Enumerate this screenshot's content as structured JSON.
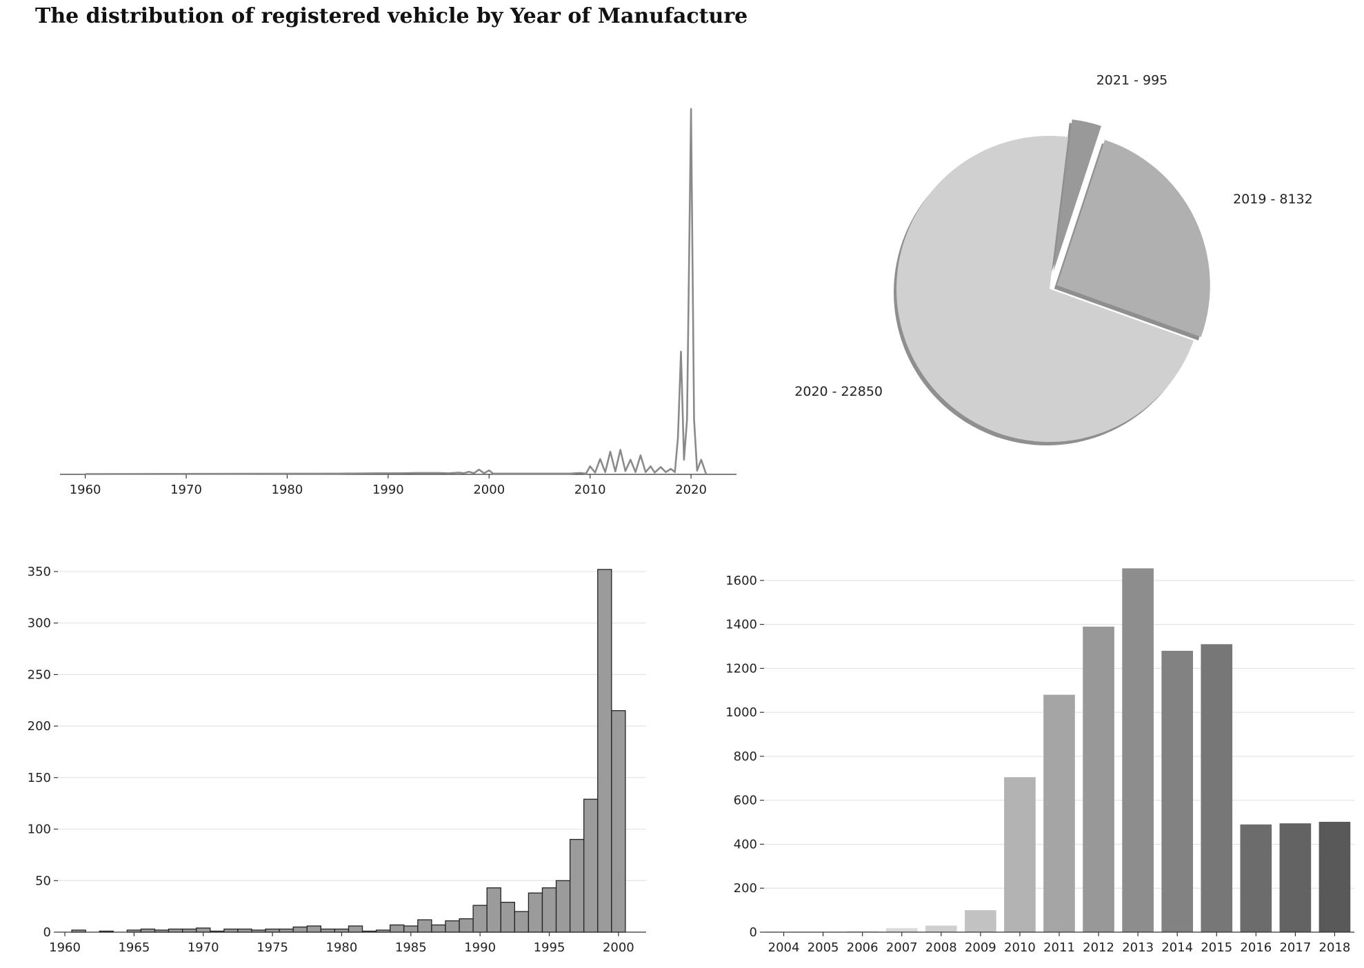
{
  "title": "The distribution of registered vehicle by Year of Manufacture",
  "chart_data": [
    {
      "type": "line",
      "name": "kde",
      "title": "",
      "xlabel": "",
      "ylabel": "",
      "xlim": [
        1957.5,
        2024.5
      ],
      "ylim": [
        0,
        1
      ],
      "x_ticks": [
        "1960",
        "1970",
        "1980",
        "1990",
        "2000",
        "2010",
        "2020"
      ],
      "grid": false,
      "x": [
        1960,
        1985,
        1989,
        1991,
        1993,
        1995,
        1996,
        1997,
        1997.5,
        1998,
        1998.5,
        1999,
        1999.5,
        2000,
        2000.4,
        2001,
        2008,
        2009,
        2009.6,
        2010,
        2010.5,
        2011,
        2011.5,
        2012,
        2012.5,
        2013,
        2013.5,
        2014,
        2014.5,
        2015,
        2015.5,
        2016,
        2016.4,
        2017,
        2017.5,
        2018,
        2018.4,
        2018.7,
        2019,
        2019.3,
        2019.6,
        2020,
        2020.3,
        2020.6,
        2021,
        2021.5
      ],
      "values": [
        0.001,
        0.002,
        0.003,
        0.003,
        0.004,
        0.004,
        0.003,
        0.005,
        0.003,
        0.007,
        0.003,
        0.013,
        0.003,
        0.011,
        0.002,
        0.002,
        0.002,
        0.004,
        0.002,
        0.022,
        0.005,
        0.042,
        0.006,
        0.062,
        0.008,
        0.067,
        0.009,
        0.04,
        0.006,
        0.052,
        0.006,
        0.022,
        0.005,
        0.02,
        0.006,
        0.015,
        0.006,
        0.1,
        0.336,
        0.04,
        0.15,
        1.0,
        0.15,
        0.01,
        0.04,
        0.0
      ]
    },
    {
      "type": "pie",
      "title": "",
      "labels": [
        "2020 - 22850",
        "2019 - 8132",
        "2021 - 995"
      ],
      "values": [
        22850,
        8132,
        995
      ],
      "colors": [
        "#d0d0d0",
        "#b0b0b0",
        "#999999"
      ],
      "shadow": true
    },
    {
      "type": "bar",
      "title": "",
      "xlabel": "",
      "ylabel": "",
      "x_ticks": [
        "1960",
        "1965",
        "1970",
        "1975",
        "1980",
        "1985",
        "1990",
        "1995",
        "2000"
      ],
      "y_ticks": [
        "0",
        "50",
        "100",
        "150",
        "200",
        "250",
        "300",
        "350"
      ],
      "xlim": [
        1959.5,
        2002
      ],
      "ylim": [
        0,
        360
      ],
      "grid": true,
      "bar_color": "#9b9b9b",
      "edge_color": "#222222",
      "categories": [
        1961,
        1963,
        1965,
        1966,
        1967,
        1968,
        1969,
        1970,
        1971,
        1972,
        1973,
        1974,
        1975,
        1976,
        1977,
        1978,
        1979,
        1980,
        1981,
        1982,
        1983,
        1984,
        1985,
        1986,
        1987,
        1988,
        1989,
        1990,
        1991,
        1992,
        1993,
        1994,
        1995,
        1996,
        1997,
        1998,
        1999,
        2000
      ],
      "values": [
        2,
        1,
        2,
        3,
        2,
        3,
        3,
        4,
        1,
        3,
        3,
        2,
        3,
        3,
        5,
        6,
        3,
        3,
        6,
        1,
        2,
        7,
        6,
        12,
        7,
        11,
        13,
        26,
        43,
        29,
        20,
        38,
        43,
        50,
        90,
        129,
        352,
        215
      ]
    },
    {
      "type": "bar",
      "title": "",
      "xlabel": "",
      "ylabel": "",
      "y_ticks": [
        "0",
        "200",
        "400",
        "600",
        "800",
        "1000",
        "1200",
        "1400",
        "1600"
      ],
      "ylim": [
        0,
        1700
      ],
      "grid": true,
      "categories": [
        "2004",
        "2005",
        "2006",
        "2007",
        "2008",
        "2009",
        "2010",
        "2011",
        "2012",
        "2013",
        "2014",
        "2015",
        "2016",
        "2017",
        "2018"
      ],
      "values": [
        1,
        2,
        5,
        18,
        30,
        100,
        705,
        1080,
        1390,
        1655,
        1280,
        1310,
        490,
        495,
        502
      ],
      "colors": [
        "#f2f2f2",
        "#ebebeb",
        "#e4e4e4",
        "#dadada",
        "#cfcfcf",
        "#c2c2c2",
        "#b3b3b3",
        "#a5a5a5",
        "#989898",
        "#8d8d8d",
        "#828282",
        "#777777",
        "#6c6c6c",
        "#636363",
        "#595959"
      ]
    }
  ]
}
